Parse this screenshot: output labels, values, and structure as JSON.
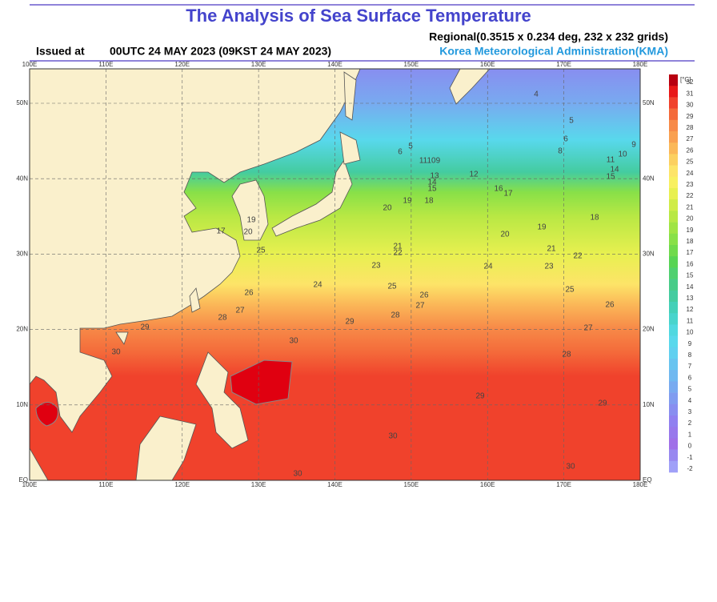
{
  "header": {
    "title": "The Analysis of Sea Surface Temperature",
    "grid_info": "Regional(0.3515 x 0.234 deg, 232 x 232 grids)",
    "issued_label": "Issued at",
    "issued_time": "00UTC 24 MAY 2023 (09KST 24 MAY 2023)",
    "agency": "Korea Meteorological Administration(KMA)"
  },
  "map": {
    "lon_labels": [
      "100E",
      "110E",
      "120E",
      "130E",
      "140E",
      "150E",
      "160E",
      "170E",
      "180E"
    ],
    "lat_labels": [
      "EQ",
      "10N",
      "20N",
      "30N",
      "40N",
      "50N"
    ],
    "contour_labels": [
      "30",
      "29",
      "30",
      "28",
      "27",
      "26",
      "25",
      "24",
      "25",
      "26",
      "27",
      "28",
      "29",
      "23",
      "22",
      "21",
      "20",
      "19",
      "18",
      "17",
      "16",
      "12",
      "13",
      "14",
      "15",
      "11109",
      "20",
      "19",
      "18",
      "21",
      "22",
      "23",
      "24",
      "25",
      "26",
      "27",
      "28",
      "29",
      "29",
      "30",
      "30",
      "30",
      "5",
      "6",
      "4",
      "5",
      "6",
      "8",
      "9",
      "10",
      "11",
      "14",
      "15",
      "17",
      "19",
      "20"
    ]
  },
  "colorbar": {
    "unit": "[°C]",
    "levels": [
      32,
      31,
      30,
      29,
      28,
      27,
      26,
      25,
      24,
      23,
      22,
      21,
      20,
      19,
      18,
      17,
      16,
      15,
      14,
      13,
      12,
      11,
      10,
      9,
      8,
      7,
      6,
      5,
      4,
      3,
      2,
      1,
      0,
      -1,
      -2
    ],
    "colors": [
      "#b80010",
      "#e81818",
      "#f0422c",
      "#f46a3a",
      "#f78a48",
      "#f9a050",
      "#fbb858",
      "#fcd060",
      "#fde468",
      "#f8f060",
      "#e8f050",
      "#d0ec48",
      "#b8e844",
      "#a0e444",
      "#88e048",
      "#70da4c",
      "#58d454",
      "#50d070",
      "#48cc88",
      "#44cca0",
      "#44d0b8",
      "#48d4cc",
      "#50d8e0",
      "#58d8ec",
      "#60d0f0",
      "#68c4f0",
      "#70b8f0",
      "#78aaf0",
      "#809cf0",
      "#888ef0",
      "#9080f0",
      "#9878ec",
      "#a070e8",
      "#9888f0",
      "#a0a0f8"
    ]
  }
}
